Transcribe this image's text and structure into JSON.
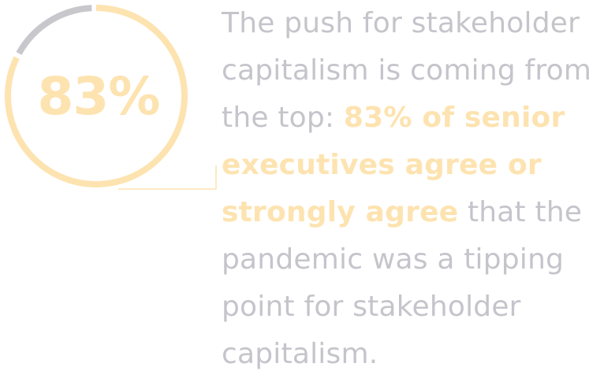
{
  "colors": {
    "accent": "#FDE3B0",
    "ring_remainder": "#C8C7CC",
    "text": "#C6C4CB"
  },
  "stat": {
    "percent": 83,
    "label": "83%"
  },
  "statement": {
    "line1": "The push for stakeholder",
    "line2": "capitalism is coming from",
    "line3_plain": "the top: ",
    "line3_highlight": "83% of senior",
    "line4_highlight": "executives agree or",
    "line5_highlight": "strongly agree",
    "line5_plain": " that the",
    "line6": "pandemic was a tipping",
    "line7": "point for stakeholder",
    "line8": "capitalism."
  }
}
